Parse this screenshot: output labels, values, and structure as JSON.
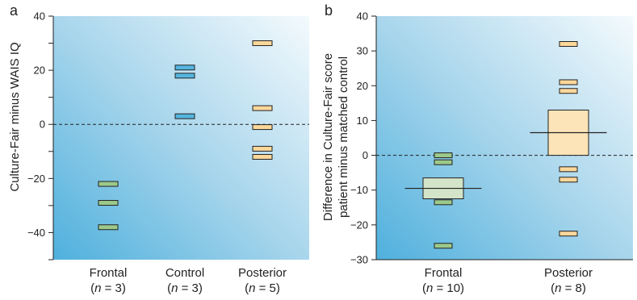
{
  "chart_data": [
    {
      "panel_label": "a",
      "type": "scatter",
      "ylabel": "Culture-Fair minus WAIS IQ",
      "ylim": [
        -50,
        40
      ],
      "yticks": [
        40,
        20,
        0,
        -20,
        -40
      ],
      "ytick_labels": [
        "40",
        "20",
        "0",
        "−20",
        "−40"
      ],
      "reference_line": 0,
      "background": "blue gradient, darker toward bottom-left",
      "groups": [
        {
          "name": "Frontal",
          "n_label": "(n = 3)",
          "n_prefix": "(",
          "n_var": "n",
          "n_suffix": " = 3)",
          "color": "#9cc98a",
          "values": [
            -22,
            -29,
            -38
          ]
        },
        {
          "name": "Control",
          "n_label": "(n = 3)",
          "n_prefix": "(",
          "n_var": "n",
          "n_suffix": " = 3)",
          "color": "#55b5e0",
          "values": [
            21,
            18,
            3
          ]
        },
        {
          "name": "Posterior",
          "n_label": "(n = 5)",
          "n_prefix": "(",
          "n_var": "n",
          "n_suffix": " = 5)",
          "color": "#fcd79a",
          "values": [
            30,
            6,
            -1,
            -9,
            -12
          ]
        }
      ]
    },
    {
      "panel_label": "b",
      "type": "scatter",
      "ylabel": "Difference in Culture-Fair score\npatient minus matched control",
      "ylabel_lines": [
        "Difference in Culture-Fair score",
        "patient minus matched control"
      ],
      "ylim": [
        -30,
        40
      ],
      "yticks": [
        40,
        30,
        20,
        10,
        0,
        -10,
        -20,
        -30
      ],
      "ytick_labels": [
        "40",
        "30",
        "20",
        "10",
        "0",
        "−10",
        "−20",
        "−30"
      ],
      "reference_line": 0,
      "background": "blue gradient, darker toward bottom-left",
      "groups": [
        {
          "name": "Frontal",
          "n_label": "(n = 10)",
          "n_prefix": "(",
          "n_var": "n",
          "n_suffix": " = 10)",
          "color": "#9cc98a",
          "box_color": "#d3e4c8",
          "mean": -9.5,
          "box": [
            -12.5,
            -6.5
          ],
          "values": [
            0,
            -2,
            -13.5,
            -26
          ]
        },
        {
          "name": "Posterior",
          "n_label": "(n = 8)",
          "n_prefix": "(",
          "n_var": "n",
          "n_suffix": " = 8)",
          "color": "#fcd79a",
          "box_color": "#fde4b8",
          "mean": 6.5,
          "box": [
            0,
            13
          ],
          "values": [
            32,
            21,
            18.5,
            -4,
            -7,
            -22.5
          ]
        }
      ]
    }
  ]
}
